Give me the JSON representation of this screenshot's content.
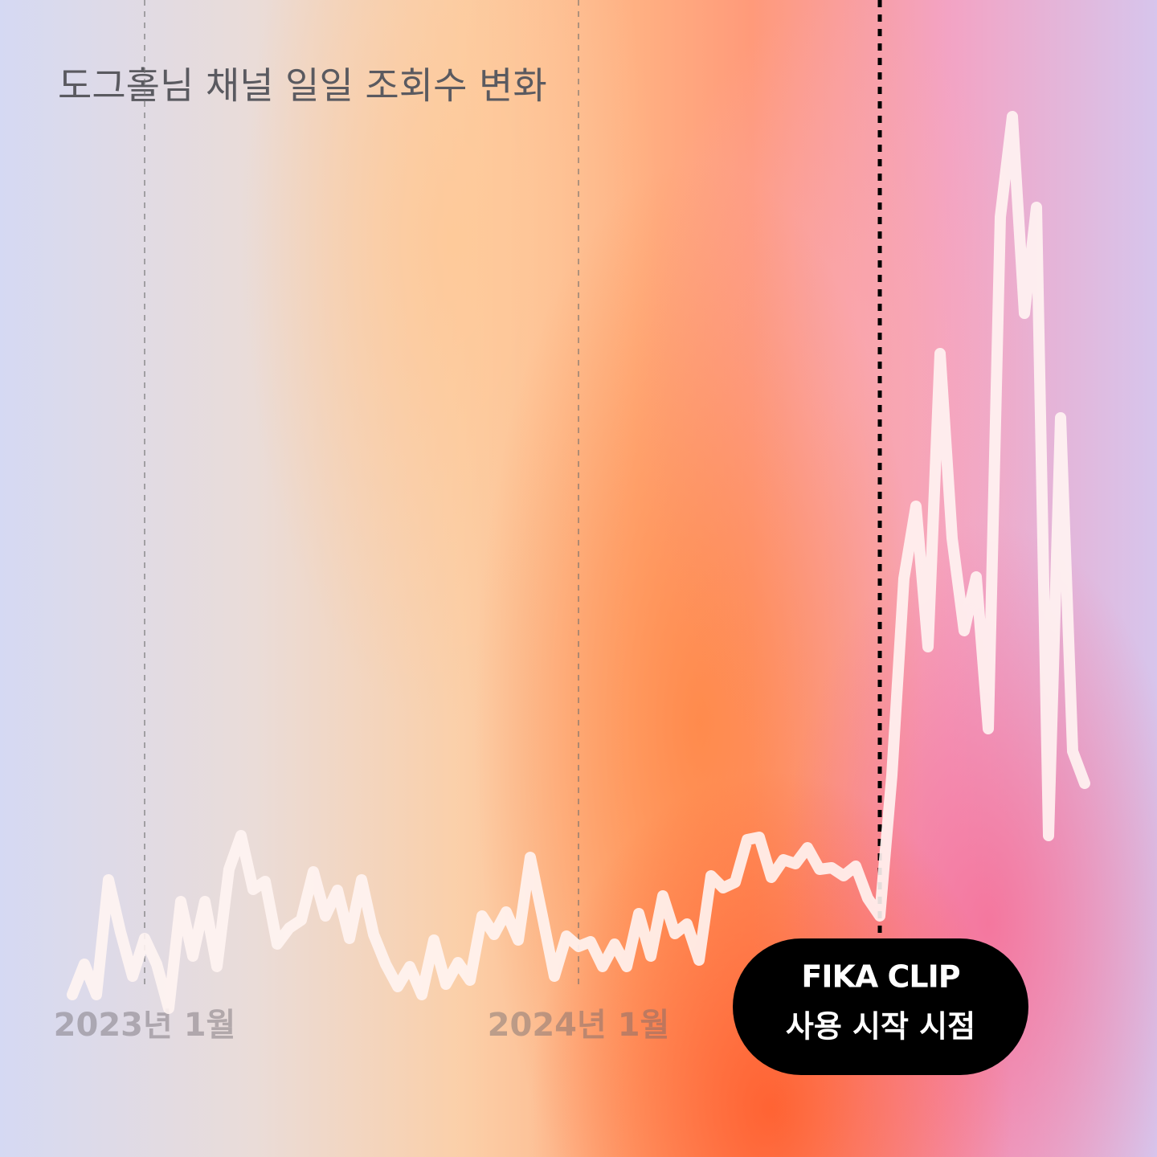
{
  "chart_data": {
    "type": "line",
    "title": "도그홀님 채널 일일 조회수 변화",
    "categories": [
      null,
      null,
      null,
      null,
      null,
      null,
      "2023년 1월",
      null,
      null,
      null,
      null,
      null,
      null,
      null,
      null,
      null,
      null,
      null,
      null,
      null,
      null,
      null,
      null,
      null,
      null,
      null,
      null,
      null,
      null,
      null,
      null,
      null,
      null,
      null,
      null,
      null,
      null,
      null,
      null,
      null,
      null,
      null,
      "2024년 1월",
      null,
      null,
      null,
      null,
      null,
      null,
      null,
      null,
      null,
      null,
      null,
      null,
      null,
      null,
      null,
      null,
      null,
      null,
      null,
      null,
      null,
      null,
      null,
      null,
      null,
      null,
      null,
      null,
      null,
      null,
      null,
      null,
      null,
      null,
      null,
      null,
      null,
      null,
      null,
      null,
      null,
      null
    ],
    "series": [
      {
        "color": "#fff4f2",
        "values": [
          202,
          240,
          202,
          345,
          280,
          225,
          272,
          240,
          185,
          318,
          250,
          318,
          237,
          358,
          400,
          333,
          343,
          265,
          285,
          295,
          355,
          300,
          332,
          272,
          345,
          277,
          240,
          212,
          237,
          202,
          270,
          215,
          242,
          220,
          300,
          277,
          305,
          270,
          373,
          300,
          225,
          275,
          262,
          268,
          237,
          265,
          237,
          303,
          250,
          325,
          278,
          290,
          245,
          350,
          335,
          342,
          395,
          398,
          348,
          370,
          365,
          385,
          358,
          360,
          350,
          362,
          322,
          300,
          475,
          720,
          810,
          635,
          1000,
          770,
          655,
          722,
          533,
          1170,
          1295,
          1050,
          1182,
          400,
          920,
          505,
          465
        ]
      }
    ],
    "ylim": [
      0,
      1440
    ],
    "annotation": {
      "brand": "FIKA CLIP",
      "text": "사용 시작 시점"
    }
  }
}
